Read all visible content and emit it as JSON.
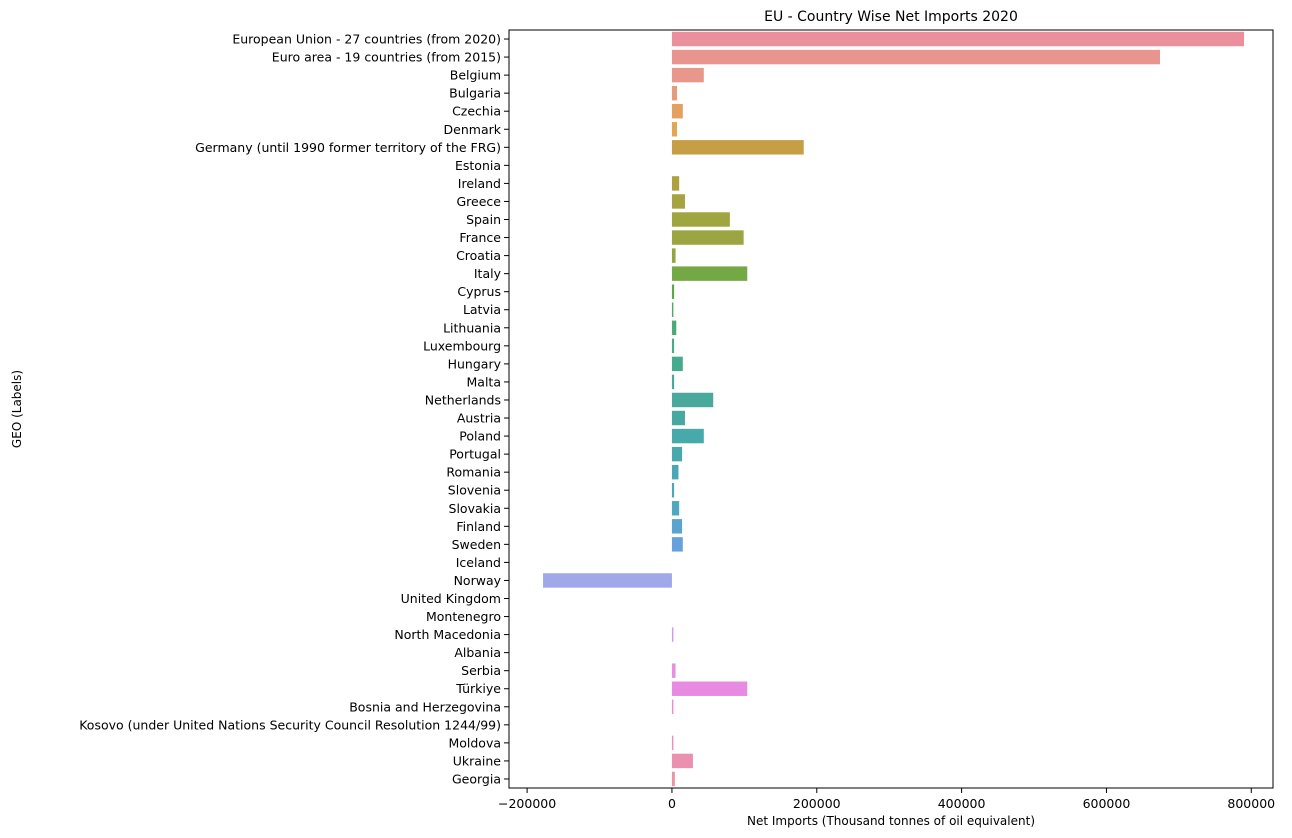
{
  "chart_data": {
    "type": "bar",
    "orientation": "horizontal",
    "title": "EU - Country Wise Net Imports 2020",
    "xlabel": "Net Imports (Thousand tonnes of oil equivalent)",
    "ylabel": "GEO (Labels)",
    "xlim": [
      -225000,
      830000
    ],
    "xticks": [
      -200000,
      0,
      200000,
      400000,
      600000,
      800000
    ],
    "grid": false,
    "categories": [
      "European Union - 27 countries (from 2020)",
      "Euro area - 19 countries  (from 2015)",
      "Belgium",
      "Bulgaria",
      "Czechia",
      "Denmark",
      "Germany (until 1990 former territory of the FRG)",
      "Estonia",
      "Ireland",
      "Greece",
      "Spain",
      "France",
      "Croatia",
      "Italy",
      "Cyprus",
      "Latvia",
      "Lithuania",
      "Luxembourg",
      "Hungary",
      "Malta",
      "Netherlands",
      "Austria",
      "Poland",
      "Portugal",
      "Romania",
      "Slovenia",
      "Slovakia",
      "Finland",
      "Sweden",
      "Iceland",
      "Norway",
      "United Kingdom",
      "Montenegro",
      "North Macedonia",
      "Albania",
      "Serbia",
      "Türkiye",
      "Bosnia and Herzegovina",
      "Kosovo (under United Nations Security Council Resolution 1244/99)",
      "Moldova",
      "Ukraine",
      "Georgia"
    ],
    "values": [
      790000,
      674000,
      44000,
      7000,
      15000,
      7000,
      182000,
      0,
      10000,
      18000,
      80000,
      99000,
      5000,
      104000,
      3000,
      2000,
      6000,
      3000,
      15000,
      3000,
      57000,
      18000,
      44000,
      14000,
      9000,
      3000,
      10000,
      14000,
      15000,
      0,
      -178000,
      0,
      0,
      2000,
      0,
      5000,
      104000,
      2000,
      0,
      2000,
      29000,
      4000
    ],
    "colors": [
      "#ea8f9b",
      "#e8958f",
      "#e8978b",
      "#e69c79",
      "#e4a05e",
      "#e0a652",
      "#c69e45",
      "#b9a042",
      "#aea13f",
      "#a6a440",
      "#9fa640",
      "#9ba542",
      "#94a43e",
      "#74a844",
      "#5aa84a",
      "#52a85c",
      "#4daa78",
      "#49aa86",
      "#46aa8f",
      "#46aa99",
      "#49a99c",
      "#47a8a0",
      "#47a9a9",
      "#48a8ae",
      "#4aa7b3",
      "#4ca7b9",
      "#50a7c1",
      "#5aa4cf",
      "#66a1de",
      "#80a5e8",
      "#a1a8ea",
      "#b3a3ec",
      "#c49ded",
      "#d498ea",
      "#de94e4",
      "#e690df",
      "#e98ae2",
      "#ea8cd6",
      "#ea8ecb",
      "#ea90c0",
      "#ea91b0",
      "#ea93a4"
    ]
  }
}
